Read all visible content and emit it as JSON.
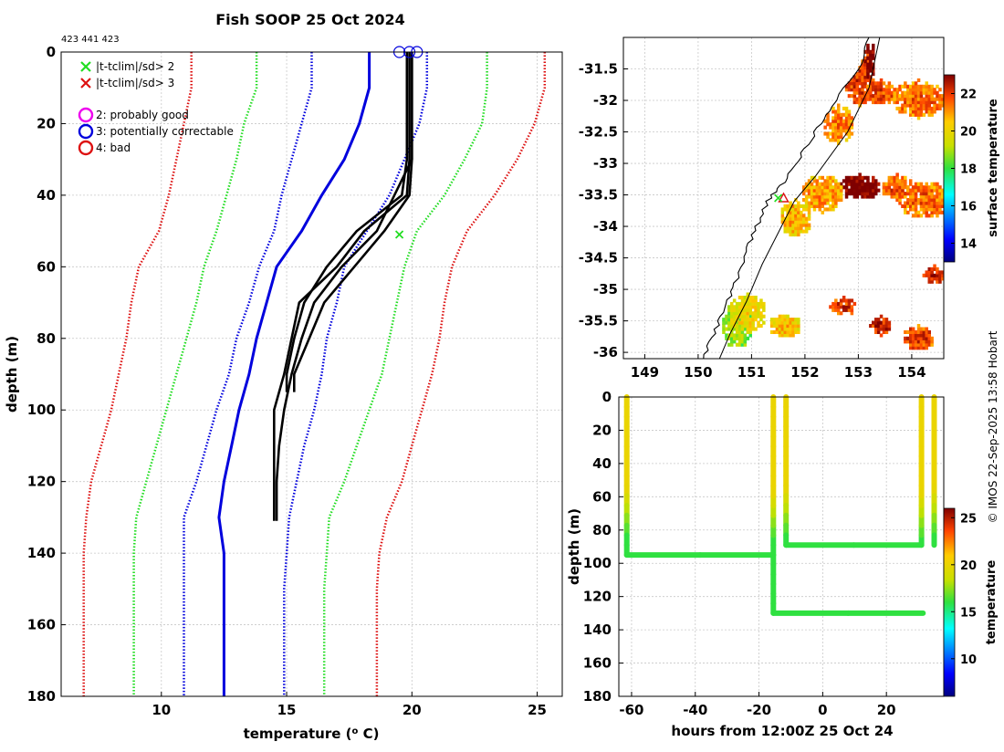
{
  "header": {
    "title": "Fish SOOP 25 Oct 2024",
    "ids": "423 441 423",
    "credit": "© IMOS 22-Sep-2025 13:58 Hobart"
  },
  "colors": {
    "green": "#22dd22",
    "red": "#dd1111",
    "blue": "#0000dd",
    "magenta": "#ee00ee",
    "black": "#000000",
    "grid": "#c8c8c8"
  },
  "legend": {
    "items": [
      {
        "marker": "x",
        "color": "#22dd22",
        "label": "|t-tclim|/sd> 2"
      },
      {
        "marker": "x",
        "color": "#dd1111",
        "label": "|t-tclim|/sd> 3"
      },
      {
        "marker": "o",
        "color": "#ee00ee",
        "label": "2: probably good"
      },
      {
        "marker": "o",
        "color": "#0000dd",
        "label": "3: potentially correctable"
      },
      {
        "marker": "o",
        "color": "#dd1111",
        "label": "4: bad"
      }
    ]
  },
  "chart_data": [
    {
      "type": "line",
      "name": "profile",
      "title": "Fish SOOP 25 Oct 2024",
      "xlabel": "temperature (° C)",
      "ylabel": "depth (m)",
      "xlim": [
        6,
        26
      ],
      "ylim": [
        180,
        0
      ],
      "xticks": [
        10,
        15,
        20,
        25
      ],
      "yticks": [
        0,
        20,
        40,
        60,
        80,
        100,
        120,
        140,
        160,
        180
      ],
      "grid": true,
      "depth": [
        0,
        10,
        20,
        30,
        40,
        50,
        60,
        70,
        80,
        90,
        100,
        110,
        120,
        130,
        140,
        150,
        160,
        170,
        180
      ],
      "series": [
        {
          "name": "3 sd low",
          "style": "dotted",
          "color": "#dd1111",
          "depth_max": 180,
          "values": [
            11.2,
            11.2,
            10.9,
            10.6,
            10.3,
            9.9,
            9.1,
            8.8,
            8.6,
            8.3,
            8.0,
            7.6,
            7.2,
            7.0,
            6.9,
            6.9,
            6.9,
            6.9,
            6.9
          ]
        },
        {
          "name": "2 sd low",
          "style": "dotted",
          "color": "#22dd22",
          "depth_max": 180,
          "values": [
            13.8,
            13.8,
            13.3,
            13.0,
            12.6,
            12.2,
            11.7,
            11.4,
            11.0,
            10.6,
            10.2,
            9.8,
            9.4,
            9.0,
            8.9,
            8.9,
            8.9,
            8.9,
            8.9
          ]
        },
        {
          "name": "1 sd low",
          "style": "dotted",
          "color": "#0000dd",
          "depth_max": 180,
          "values": [
            16.0,
            16.0,
            15.6,
            15.2,
            14.8,
            14.5,
            13.9,
            13.5,
            13.0,
            12.7,
            12.2,
            11.8,
            11.4,
            10.9,
            10.9,
            10.9,
            10.9,
            10.9,
            10.9
          ]
        },
        {
          "name": "climatology mean",
          "style": "solid",
          "color": "#0000dd",
          "depth_max": 180,
          "values": [
            18.3,
            18.3,
            17.9,
            17.3,
            16.4,
            15.6,
            14.6,
            14.2,
            13.8,
            13.5,
            13.1,
            12.8,
            12.5,
            12.3,
            12.5,
            12.5,
            12.5,
            12.5,
            12.5
          ]
        },
        {
          "name": "1 sd high",
          "style": "dotted",
          "color": "#0000dd",
          "depth_max": 180,
          "values": [
            20.6,
            20.6,
            20.3,
            19.7,
            19.1,
            18.2,
            17.3,
            17.0,
            16.6,
            16.4,
            16.1,
            15.7,
            15.4,
            15.1,
            15.0,
            14.9,
            14.9,
            14.9,
            14.9
          ]
        },
        {
          "name": "2 sd high",
          "style": "dotted",
          "color": "#22dd22",
          "depth_max": 180,
          "values": [
            23.0,
            23.0,
            22.8,
            22.1,
            21.3,
            20.2,
            19.7,
            19.4,
            19.1,
            18.8,
            18.3,
            17.8,
            17.3,
            16.7,
            16.6,
            16.5,
            16.5,
            16.5,
            16.5
          ]
        },
        {
          "name": "3 sd high",
          "style": "dotted",
          "color": "#dd1111",
          "depth_max": 180,
          "values": [
            25.3,
            25.3,
            24.9,
            24.2,
            23.3,
            22.2,
            21.6,
            21.3,
            21.1,
            20.8,
            20.4,
            20.0,
            19.6,
            19.0,
            18.7,
            18.6,
            18.6,
            18.6,
            18.6
          ]
        },
        {
          "name": "observed profile 1",
          "style": "solid",
          "color": "#000000",
          "depth_max": 131,
          "values": [
            19.9,
            19.9,
            19.9,
            19.9,
            19.8,
            18.1,
            17.0,
            15.5,
            15.2,
            14.9,
            14.5,
            14.5,
            14.5,
            14.5
          ]
        },
        {
          "name": "observed profile 2",
          "style": "solid",
          "color": "#000000",
          "depth_max": 131,
          "values": [
            20.0,
            20.0,
            20.0,
            20.0,
            19.3,
            18.6,
            17.2,
            16.1,
            15.6,
            15.2,
            14.9,
            14.7,
            14.6,
            14.6
          ]
        },
        {
          "name": "observed profile 3",
          "style": "solid",
          "color": "#000000",
          "depth_max": 95,
          "values": [
            19.8,
            19.8,
            19.8,
            19.8,
            19.6,
            17.8,
            16.6,
            15.7,
            15.3,
            15.0
          ]
        },
        {
          "name": "observed profile 4",
          "style": "solid",
          "color": "#000000",
          "depth_max": 95,
          "values": [
            20.0,
            20.0,
            20.0,
            20.0,
            19.9,
            18.9,
            17.7,
            16.5,
            15.9,
            15.3
          ]
        }
      ],
      "flags": [
        {
          "marker": "o",
          "color": "#0000dd",
          "temperature": 19.5,
          "depth": 0
        },
        {
          "marker": "o",
          "color": "#0000dd",
          "temperature": 19.9,
          "depth": 0
        },
        {
          "marker": "o",
          "color": "#0000dd",
          "temperature": 20.2,
          "depth": 0
        },
        {
          "marker": "x",
          "color": "#22dd22",
          "temperature": 19.5,
          "depth": 51
        }
      ]
    },
    {
      "type": "heatmap",
      "name": "sst-map",
      "xlim": [
        148.6,
        154.6
      ],
      "ylim": [
        -36.1,
        -31.0
      ],
      "xticks": [
        149,
        150,
        151,
        152,
        153,
        154
      ],
      "yticks": [
        -31.5,
        -32,
        -32.5,
        -33,
        -33.5,
        -34,
        -34.5,
        -35,
        -35.5,
        -36
      ],
      "colorbar_label": "surface temperature",
      "colorbar_ticks": [
        14,
        16,
        18,
        20,
        22
      ],
      "colorbar_range": [
        13,
        23
      ],
      "coast": [
        [
          153.2,
          -31.0
        ],
        [
          153.0,
          -31.5
        ],
        [
          152.5,
          -32.1
        ],
        [
          152.2,
          -32.5
        ],
        [
          151.9,
          -32.9
        ],
        [
          151.6,
          -33.3
        ],
        [
          151.3,
          -33.6
        ],
        [
          151.1,
          -34.0
        ],
        [
          150.9,
          -34.4
        ],
        [
          150.7,
          -34.9
        ],
        [
          150.5,
          -35.3
        ],
        [
          150.3,
          -35.7
        ],
        [
          150.1,
          -36.1
        ]
      ],
      "shelf": [
        [
          153.4,
          -31.0
        ],
        [
          153.2,
          -31.8
        ],
        [
          152.8,
          -32.5
        ],
        [
          152.2,
          -33.2
        ],
        [
          151.8,
          -33.6
        ],
        [
          151.5,
          -34.1
        ],
        [
          151.2,
          -34.6
        ],
        [
          150.9,
          -35.2
        ],
        [
          150.6,
          -35.7
        ],
        [
          150.4,
          -36.1
        ]
      ],
      "blobs": [
        {
          "lon": 153.0,
          "lat": -31.6,
          "rx": 0.3,
          "ry": 0.5,
          "temp": 21.5
        },
        {
          "lon": 153.2,
          "lat": -31.4,
          "rx": 0.1,
          "ry": 0.3,
          "temp": 22.8
        },
        {
          "lon": 154.1,
          "lat": -32.0,
          "rx": 0.5,
          "ry": 0.3,
          "temp": 21.0
        },
        {
          "lon": 153.4,
          "lat": -31.9,
          "rx": 0.3,
          "ry": 0.2,
          "temp": 21.3
        },
        {
          "lon": 152.6,
          "lat": -32.4,
          "rx": 0.3,
          "ry": 0.3,
          "temp": 20.8
        },
        {
          "lon": 153.0,
          "lat": -33.4,
          "rx": 0.4,
          "ry": 0.2,
          "temp": 22.9
        },
        {
          "lon": 154.2,
          "lat": -33.6,
          "rx": 0.5,
          "ry": 0.3,
          "temp": 21.0
        },
        {
          "lon": 153.7,
          "lat": -33.4,
          "rx": 0.3,
          "ry": 0.2,
          "temp": 21.2
        },
        {
          "lon": 152.3,
          "lat": -33.5,
          "rx": 0.4,
          "ry": 0.3,
          "temp": 20.5
        },
        {
          "lon": 151.8,
          "lat": -33.9,
          "rx": 0.3,
          "ry": 0.3,
          "temp": 20.2
        },
        {
          "lon": 150.7,
          "lat": -35.6,
          "rx": 0.3,
          "ry": 0.35,
          "temp": 18.5
        },
        {
          "lon": 150.9,
          "lat": -35.4,
          "rx": 0.35,
          "ry": 0.3,
          "temp": 19.6
        },
        {
          "lon": 151.6,
          "lat": -35.6,
          "rx": 0.3,
          "ry": 0.2,
          "temp": 20.0
        },
        {
          "lon": 152.7,
          "lat": -35.3,
          "rx": 0.25,
          "ry": 0.15,
          "temp": 21.5
        },
        {
          "lon": 153.4,
          "lat": -35.6,
          "rx": 0.2,
          "ry": 0.15,
          "temp": 21.8
        },
        {
          "lon": 154.4,
          "lat": -34.8,
          "rx": 0.2,
          "ry": 0.15,
          "temp": 22.0
        },
        {
          "lon": 154.1,
          "lat": -35.8,
          "rx": 0.3,
          "ry": 0.2,
          "temp": 21.5
        }
      ],
      "markers": [
        {
          "marker": "triangle",
          "color": "#dd1111",
          "lon": 151.6,
          "lat": -33.55
        },
        {
          "marker": "x",
          "color": "#22dd22",
          "lon": 151.5,
          "lat": -33.55
        }
      ]
    },
    {
      "type": "line",
      "name": "time-depth",
      "xlabel": "hours from 12:00Z 25 Oct 24",
      "ylabel": "depth (m)",
      "xlim": [
        -64,
        38
      ],
      "ylim": [
        180,
        0
      ],
      "xticks": [
        -60,
        -40,
        -20,
        0,
        20
      ],
      "yticks": [
        0,
        20,
        40,
        60,
        80,
        100,
        120,
        140,
        160,
        180
      ],
      "colorbar_label": "temperature",
      "colorbar_ticks": [
        10,
        15,
        20,
        25
      ],
      "colorbar_range": [
        6,
        26
      ],
      "segments": [
        {
          "hours": [
            -61.5,
            -61.5,
            -15.5,
            -15.5
          ],
          "depth": [
            0,
            95,
            95,
            0
          ],
          "surface_temp": 20.0,
          "bottom_temp": 16.0
        },
        {
          "hours": [
            -11.5,
            -11.5,
            31.0,
            31.0
          ],
          "depth": [
            0,
            89,
            89,
            0
          ],
          "surface_temp": 20.0,
          "bottom_temp": 16.0
        },
        {
          "hours": [
            -15.5,
            -15.5,
            31.5
          ],
          "depth": [
            95,
            130,
            130
          ],
          "surface_temp": 16.0,
          "bottom_temp": 16.0
        },
        {
          "hours": [
            35.0,
            35.0
          ],
          "depth": [
            0,
            89
          ],
          "surface_temp": 20.0,
          "bottom_temp": 16.0
        }
      ]
    }
  ]
}
